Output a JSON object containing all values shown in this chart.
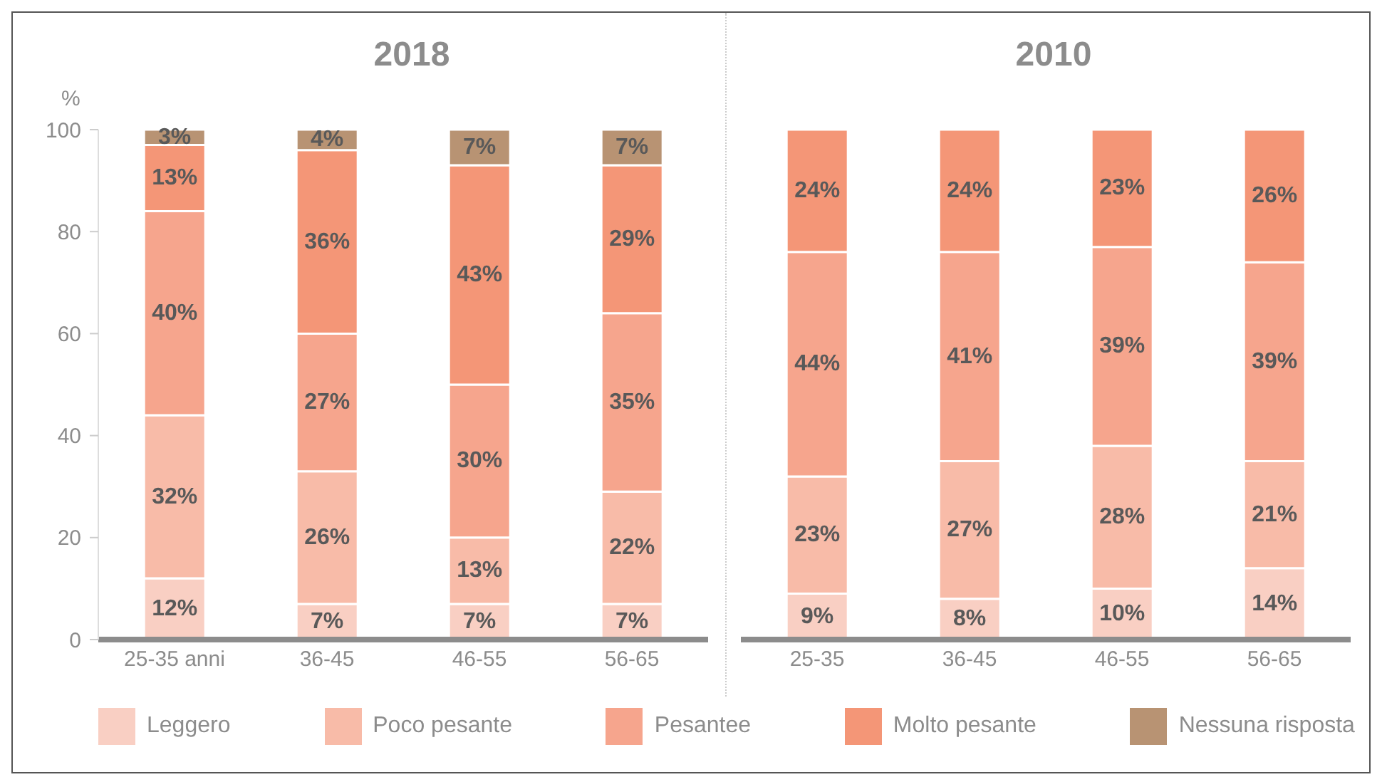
{
  "chart_data": [
    {
      "type": "bar",
      "title": "2018",
      "ylabel": "%",
      "stacked": true,
      "categories": [
        "25-35 anni",
        "36-45",
        "46-55",
        "56-65"
      ],
      "ylim": [
        0,
        100
      ],
      "yticks": [
        0,
        20,
        40,
        60,
        80,
        100
      ],
      "grid": false,
      "legend": "bottom",
      "series": [
        {
          "name": "Leggero",
          "color": "#f9cfc3",
          "values": [
            12,
            7,
            7,
            7
          ],
          "value_labels": [
            "12%",
            "7%",
            "7%",
            "7%"
          ]
        },
        {
          "name": "Poco pesante",
          "color": "#f8bba8",
          "values": [
            32,
            26,
            13,
            22
          ],
          "value_labels": [
            "32%",
            "26%",
            "13%",
            "22%"
          ]
        },
        {
          "name": "Pesantee",
          "color": "#f6a58d",
          "values": [
            40,
            27,
            30,
            35
          ],
          "value_labels": [
            "40%",
            "27%",
            "30%",
            "35%"
          ]
        },
        {
          "name": "Molto pesante",
          "color": "#f49677",
          "values": [
            13,
            36,
            43,
            29
          ],
          "value_labels": [
            "13%",
            "36%",
            "43%",
            "29%"
          ]
        },
        {
          "name": "Nessuna risposta",
          "color": "#b89373",
          "values": [
            3,
            4,
            7,
            7
          ],
          "value_labels": [
            "3%",
            "4%",
            "7%",
            "7%"
          ]
        }
      ]
    },
    {
      "type": "bar",
      "title": "2010",
      "stacked": true,
      "categories": [
        "25-35",
        "36-45",
        "46-55",
        "56-65"
      ],
      "ylim": [
        0,
        100
      ],
      "tick_labels": "x",
      "grid": false,
      "legend": "bottom",
      "series": [
        {
          "name": "Leggero",
          "color": "#f9cfc3",
          "values": [
            9,
            8,
            10,
            14
          ],
          "value_labels": [
            "9%",
            "8%",
            "10%",
            "14%"
          ]
        },
        {
          "name": "Poco pesante",
          "color": "#f8bba8",
          "values": [
            23,
            27,
            28,
            21
          ],
          "value_labels": [
            "23%",
            "27%",
            "28%",
            "21%"
          ]
        },
        {
          "name": "Pesantee",
          "color": "#f6a58d",
          "values": [
            44,
            41,
            39,
            39
          ],
          "value_labels": [
            "44%",
            "41%",
            "39%",
            "39%"
          ]
        },
        {
          "name": "Molto pesante",
          "color": "#f49677",
          "values": [
            24,
            24,
            23,
            26
          ],
          "value_labels": [
            "24%",
            "24%",
            "23%",
            "26%"
          ]
        }
      ]
    }
  ]
}
